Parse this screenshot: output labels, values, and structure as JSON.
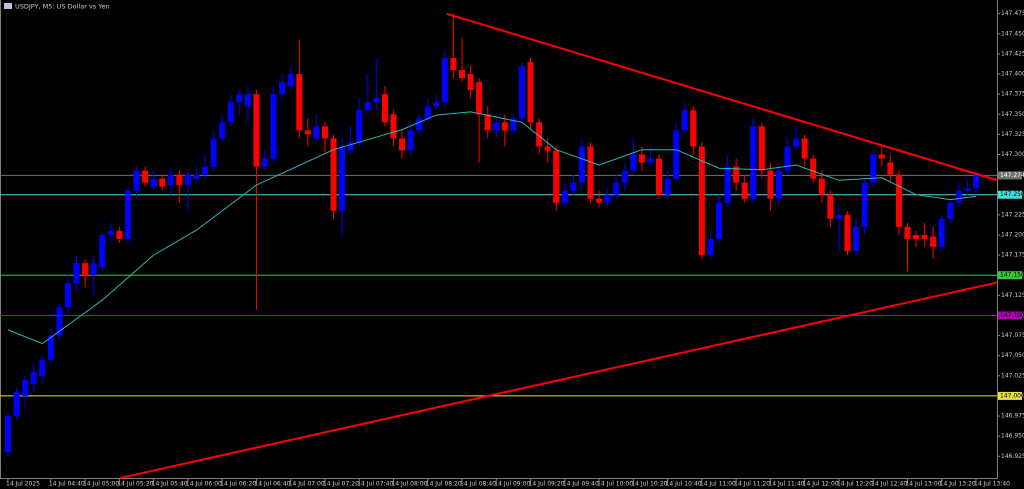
{
  "chart_data": {
    "type": "candlestick",
    "title": "USDJPY, M5:  US Dollar vs Yen",
    "categories": [
      "14 Jul 2025",
      null,
      null,
      null,
      null,
      "14 Jul 04:40",
      null,
      null,
      null,
      "14 Jul 05:00",
      null,
      null,
      null,
      "14 Jul 05:20",
      null,
      null,
      null,
      "14 Jul 05:40",
      null,
      null,
      null,
      "14 Jul 06:00",
      null,
      null,
      null,
      "14 Jul 06:20",
      null,
      null,
      null,
      "14 Jul 06:40",
      null,
      null,
      null,
      "14 Jul 07:00",
      null,
      null,
      null,
      "14 Jul 07:20",
      null,
      null,
      null,
      "14 Jul 07:40",
      null,
      null,
      null,
      "14 Jul 08:00",
      null,
      null,
      null,
      "14 Jul 08:20",
      null,
      null,
      null,
      "14 Jul 08:40",
      null,
      null,
      null,
      "14 Jul 09:00",
      null,
      null,
      null,
      "14 Jul 09:20",
      null,
      null,
      null,
      "14 Jul 09:40",
      null,
      null,
      null,
      "14 Jul 10:00",
      null,
      null,
      null,
      "14 Jul 10:20",
      null,
      null,
      null,
      "14 Jul 10:40",
      null,
      null,
      null,
      "14 Jul 11:00",
      null,
      null,
      null,
      "14 Jul 11:20",
      null,
      null,
      null,
      "14 Jul 11:40",
      null,
      null,
      null,
      "14 Jul 12:00",
      null,
      null,
      null,
      "14 Jul 12:20",
      null,
      null,
      null,
      "14 Jul 12:40",
      null,
      null,
      null,
      "14 Jul 13:00",
      null,
      null,
      null,
      "14 Jul 13:20",
      null,
      null,
      null,
      "14 Jul 13:40"
    ],
    "open": [
      146.93,
      146.975,
      147.0,
      147.015,
      147.025,
      147.045,
      147.075,
      147.11,
      147.14,
      147.165,
      147.15,
      147.16,
      147.2,
      147.205,
      147.195,
      147.255,
      147.28,
      147.26,
      147.27,
      147.262,
      147.275,
      147.262,
      147.27,
      147.275,
      147.285,
      147.32,
      147.34,
      147.365,
      147.36,
      147.375,
      147.285,
      147.295,
      147.375,
      147.385,
      147.4,
      147.33,
      147.32,
      147.335,
      147.32,
      147.23,
      147.305,
      147.315,
      147.355,
      147.365,
      147.375,
      147.35,
      147.32,
      147.305,
      147.33,
      147.345,
      147.36,
      147.365,
      147.42,
      147.405,
      147.4,
      147.39,
      147.35,
      147.33,
      147.34,
      147.33,
      147.345,
      147.415,
      147.34,
      147.31,
      147.305,
      147.24,
      147.255,
      147.265,
      147.31,
      147.245,
      147.24,
      147.25,
      147.265,
      147.28,
      147.3,
      147.29,
      147.295,
      147.25,
      147.27,
      147.33,
      147.355,
      147.31,
      147.175,
      147.195,
      147.24,
      147.285,
      147.265,
      147.245,
      147.335,
      147.28,
      147.245,
      147.28,
      147.31,
      147.32,
      147.295,
      147.27,
      147.25,
      147.22,
      147.225,
      147.18,
      147.21,
      147.265,
      147.3,
      147.29,
      147.275,
      147.21,
      147.2,
      147.2,
      147.198,
      147.185,
      147.22,
      147.24,
      147.255,
      147.258
    ],
    "high": [
      146.98,
      147.01,
      147.025,
      147.04,
      147.05,
      147.085,
      147.115,
      147.15,
      147.175,
      147.17,
      147.175,
      147.205,
      147.215,
      147.21,
      147.26,
      147.285,
      147.285,
      147.28,
      147.275,
      147.285,
      147.28,
      147.28,
      147.285,
      147.3,
      147.33,
      147.35,
      147.375,
      147.38,
      147.385,
      147.38,
      147.305,
      147.385,
      147.4,
      147.41,
      147.443,
      147.345,
      147.35,
      147.34,
      147.325,
      147.32,
      147.335,
      147.37,
      147.4,
      147.42,
      147.385,
      147.355,
      147.33,
      147.34,
      147.35,
      147.37,
      147.375,
      147.43,
      147.475,
      147.445,
      147.41,
      147.395,
      147.36,
      147.35,
      147.35,
      147.35,
      147.415,
      147.42,
      147.345,
      147.32,
      147.31,
      147.265,
      147.275,
      147.32,
      147.315,
      147.255,
      147.26,
      147.275,
      147.29,
      147.32,
      147.31,
      147.31,
      147.3,
      147.28,
      147.34,
      147.365,
      147.36,
      147.315,
      147.205,
      147.25,
      147.3,
      147.295,
      147.275,
      147.345,
      147.34,
      147.29,
      147.29,
      147.32,
      147.335,
      147.325,
      147.3,
      147.28,
      147.255,
      147.235,
      147.23,
      147.22,
      147.27,
      147.305,
      147.31,
      147.3,
      147.28,
      147.215,
      147.205,
      147.215,
      147.21,
      147.225,
      147.245,
      147.265,
      147.27,
      147.28
    ],
    "low": [
      146.925,
      146.97,
      146.985,
      147.005,
      147.015,
      147.04,
      147.07,
      147.1,
      147.13,
      147.135,
      147.125,
      147.155,
      147.19,
      147.19,
      147.19,
      147.245,
      147.26,
      147.255,
      147.255,
      147.25,
      147.24,
      147.23,
      147.265,
      147.27,
      147.28,
      147.315,
      147.335,
      147.35,
      147.34,
      147.107,
      147.28,
      147.29,
      147.37,
      147.38,
      147.32,
      147.31,
      147.315,
      147.3,
      147.22,
      147.2,
      147.3,
      147.31,
      147.35,
      147.355,
      147.335,
      147.31,
      147.295,
      147.3,
      147.325,
      147.34,
      147.355,
      147.36,
      147.395,
      147.39,
      147.37,
      147.29,
      147.32,
      147.32,
      147.31,
      147.325,
      147.34,
      147.33,
      147.3,
      147.29,
      147.23,
      147.235,
      147.25,
      147.255,
      147.24,
      147.235,
      147.235,
      147.245,
      147.255,
      147.275,
      147.28,
      147.285,
      147.245,
      147.245,
      147.265,
      147.325,
      147.3,
      147.17,
      147.17,
      147.19,
      147.235,
      147.255,
      147.24,
      147.24,
      147.27,
      147.23,
      147.24,
      147.275,
      147.305,
      147.285,
      147.265,
      147.24,
      147.21,
      147.18,
      147.175,
      147.175,
      147.2,
      147.26,
      147.285,
      147.265,
      147.2,
      147.155,
      147.185,
      147.185,
      147.17,
      147.18,
      147.215,
      147.235,
      147.25,
      147.25
    ],
    "close": [
      146.975,
      147.005,
      147.02,
      147.03,
      147.045,
      147.075,
      147.11,
      147.14,
      147.165,
      147.15,
      147.165,
      147.2,
      147.205,
      147.195,
      147.255,
      147.28,
      147.265,
      147.27,
      147.26,
      147.275,
      147.262,
      147.275,
      147.275,
      147.285,
      147.32,
      147.34,
      147.365,
      147.375,
      147.375,
      147.285,
      147.295,
      147.375,
      147.39,
      147.4,
      147.33,
      147.325,
      147.335,
      147.32,
      147.23,
      147.31,
      147.315,
      147.355,
      147.365,
      147.37,
      147.34,
      147.32,
      147.305,
      147.33,
      147.345,
      147.36,
      147.365,
      147.42,
      147.405,
      147.395,
      147.38,
      147.35,
      147.33,
      147.34,
      147.33,
      147.345,
      147.41,
      147.34,
      147.31,
      147.305,
      147.24,
      147.255,
      147.265,
      147.31,
      147.245,
      147.24,
      147.25,
      147.265,
      147.28,
      147.3,
      147.29,
      147.295,
      147.25,
      147.27,
      147.33,
      147.355,
      147.31,
      147.175,
      147.195,
      147.24,
      147.285,
      147.265,
      147.245,
      147.335,
      147.28,
      147.245,
      147.28,
      147.31,
      147.32,
      147.295,
      147.27,
      147.25,
      147.22,
      147.225,
      147.18,
      147.21,
      147.265,
      147.3,
      147.295,
      147.275,
      147.21,
      147.195,
      147.195,
      147.195,
      147.185,
      147.22,
      147.24,
      147.255,
      147.258,
      147.274
    ],
    "bull_color": "#0000ff",
    "bear_color": "#ff0000",
    "ma": {
      "color": "#2fb5b5",
      "x": [
        0,
        4,
        11,
        17,
        22,
        29,
        38,
        46,
        50,
        54,
        60,
        64,
        69,
        74,
        78,
        83,
        88,
        92,
        97,
        102,
        106,
        110,
        113
      ],
      "values": [
        147.082,
        147.065,
        147.119,
        147.175,
        147.206,
        147.262,
        147.306,
        147.331,
        147.349,
        147.353,
        147.34,
        147.306,
        147.287,
        147.306,
        147.306,
        147.283,
        147.281,
        147.287,
        147.268,
        147.271,
        147.25,
        147.244,
        147.248
      ]
    },
    "trendlines": [
      {
        "color": "#ff0000",
        "x": [
          51.2,
          115.5
        ],
        "values": [
          147.475,
          147.268
        ]
      },
      {
        "color": "#ff0000",
        "x": [
          13.1,
          115.5
        ],
        "values": [
          146.898,
          147.141
        ]
      }
    ],
    "levels": [
      {
        "value": 147.274,
        "label": "147.274",
        "color": "#707070"
      },
      {
        "value": 147.25,
        "label": "147.250",
        "color": "#40e0e0"
      },
      {
        "value": 147.15,
        "label": "147.150",
        "color": "#32cd32"
      },
      {
        "value": 147.1,
        "label": "147.100",
        "color": "#b000b0"
      },
      {
        "value": 147.0,
        "label": "147.000",
        "color": "#e6e040"
      }
    ],
    "ylim": [
      146.898,
      147.492
    ],
    "yticks": [
      147.475,
      {
        "value": 147.45,
        "label": "147.450"
      },
      147.425,
      {
        "value": 147.4,
        "label": "147.400"
      },
      147.375,
      {
        "value": 147.35,
        "label": "147.350"
      },
      147.325,
      {
        "value": 147.3,
        "label": "147.300"
      },
      147.275,
      {
        "value": 147.25,
        "label": "147.250"
      },
      147.225,
      {
        "value": 147.2,
        "label": "147.200"
      },
      147.175,
      {
        "value": 147.15,
        "label": "147.150"
      },
      147.125,
      {
        "value": 147.1,
        "label": "147.100"
      },
      147.075,
      {
        "value": 147.05,
        "label": "147.050"
      },
      147.025,
      {
        "value": 147.0,
        "label": "147.000"
      },
      146.975,
      {
        "value": 146.95,
        "label": "146.950"
      },
      146.925
    ]
  }
}
